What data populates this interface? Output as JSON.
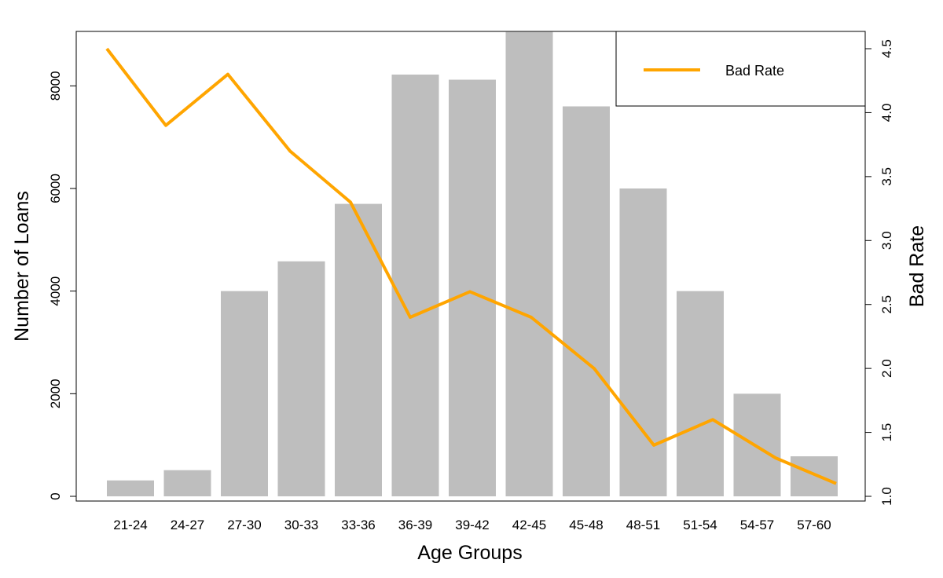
{
  "chart_data": {
    "type": "bar",
    "categories": [
      "21-24",
      "24-27",
      "27-30",
      "30-33",
      "33-36",
      "36-39",
      "39-42",
      "42-45",
      "45-48",
      "48-51",
      "51-54",
      "54-57",
      "57-60"
    ],
    "series": [
      {
        "name": "",
        "kind": "bar",
        "axis": "left",
        "values": [
          310,
          510,
          4000,
          4580,
          5700,
          8220,
          8120,
          9050,
          7600,
          6000,
          4000,
          2000,
          780
        ]
      },
      {
        "name": "Bad Rate",
        "kind": "line",
        "axis": "right",
        "values": [
          4.5,
          3.9,
          4.3,
          3.7,
          3.3,
          2.4,
          2.6,
          2.4,
          2.0,
          1.4,
          1.6,
          1.3,
          1.1
        ]
      }
    ],
    "xlabel": "Age Groups",
    "ylabel": "Number of Loans",
    "y2label": "Bad Rate",
    "ylim": [
      0,
      9000
    ],
    "y2lim": [
      1.0,
      4.6
    ],
    "yticks": [
      "0",
      "2000",
      "4000",
      "6000",
      "8000"
    ],
    "y2ticks": [
      "1.0",
      "1.5",
      "2.0",
      "2.5",
      "3.0",
      "3.5",
      "4.0",
      "4.5"
    ],
    "legend": {
      "position": "top-right",
      "entries": [
        "Bad Rate"
      ]
    },
    "colors": {
      "bar": "#bebebe",
      "line": "#ffa500",
      "axis": "#000000"
    },
    "grid": false
  }
}
